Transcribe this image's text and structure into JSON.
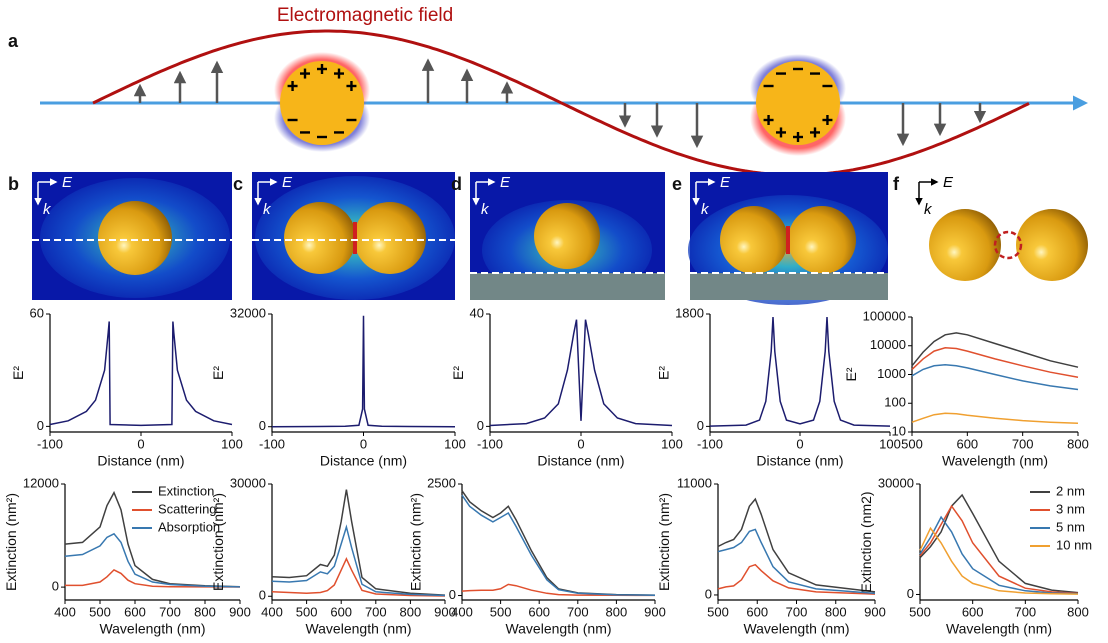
{
  "panel_a": {
    "label": "a",
    "title": "Electromagnetic field"
  },
  "field_panels": [
    {
      "label": "b",
      "e": "E",
      "k": "k"
    },
    {
      "label": "c",
      "e": "E",
      "k": "k"
    },
    {
      "label": "d",
      "e": "E",
      "k": "k"
    },
    {
      "label": "e",
      "e": "E",
      "k": "k"
    },
    {
      "label": "f",
      "e": "E",
      "k": "k"
    }
  ],
  "chart_data": [
    {
      "type": "line",
      "xlabel": "Distance (nm)",
      "ylabel": "E²",
      "xlim": [
        -100,
        100
      ],
      "ylim": [
        -3,
        60
      ],
      "xticks": [
        -100,
        0,
        100
      ],
      "yticks": [
        0,
        60
      ],
      "x": [
        -100,
        -80,
        -60,
        -50,
        -40,
        -36,
        -35,
        -34,
        0,
        34,
        35,
        36,
        40,
        50,
        60,
        80,
        100
      ],
      "series": [
        {
          "color": "#1c1c6e",
          "values": [
            1,
            3,
            8,
            14,
            30,
            50,
            56,
            1,
            0.5,
            1,
            56,
            50,
            30,
            14,
            8,
            3,
            1
          ]
        }
      ]
    },
    {
      "type": "line",
      "xlabel": "Distance (nm)",
      "ylabel": "E²",
      "xlim": [
        -100,
        100
      ],
      "ylim": [
        -1500,
        32000
      ],
      "xticks": [
        -100,
        0,
        100
      ],
      "yticks": [
        0,
        32000
      ],
      "x": [
        -100,
        -50,
        -20,
        -5,
        -1,
        0,
        1,
        5,
        20,
        50,
        100
      ],
      "series": [
        {
          "color": "#1c1c6e",
          "values": [
            0,
            50,
            150,
            400,
            5000,
            31500,
            5000,
            400,
            150,
            50,
            0
          ]
        }
      ]
    },
    {
      "type": "line",
      "xlabel": "Distance (nm)",
      "ylabel": "E²",
      "xlim": [
        -100,
        100
      ],
      "ylim": [
        -2,
        40
      ],
      "xticks": [
        -100,
        0,
        100
      ],
      "yticks": [
        0,
        40
      ],
      "x": [
        -100,
        -60,
        -40,
        -25,
        -15,
        -8,
        -5,
        0,
        5,
        8,
        15,
        25,
        40,
        60,
        100
      ],
      "series": [
        {
          "color": "#1c1c6e",
          "values": [
            0.3,
            1,
            3,
            8,
            20,
            33,
            38,
            2,
            38,
            33,
            20,
            8,
            3,
            1,
            0.3
          ]
        }
      ]
    },
    {
      "type": "line",
      "xlabel": "Distance (nm)",
      "ylabel": "E²",
      "xlim": [
        -100,
        100
      ],
      "ylim": [
        -90,
        1800
      ],
      "xticks": [
        -100,
        0,
        100
      ],
      "yticks": [
        0,
        1800
      ],
      "x": [
        -100,
        -60,
        -45,
        -38,
        -32,
        -30,
        -28,
        -22,
        -15,
        0,
        15,
        22,
        28,
        30,
        32,
        38,
        45,
        60,
        100
      ],
      "series": [
        {
          "color": "#1c1c6e",
          "values": [
            5,
            20,
            100,
            400,
            1200,
            1750,
            1200,
            400,
            100,
            40,
            100,
            400,
            1200,
            1750,
            1200,
            400,
            100,
            20,
            5
          ]
        }
      ]
    },
    {
      "type": "line",
      "xlabel": "Wavelength (nm)",
      "ylabel": "E²",
      "yscale": "log",
      "xlim": [
        500,
        800
      ],
      "ylim": [
        10,
        100000
      ],
      "xticks": [
        500,
        600,
        700,
        800
      ],
      "yticks": [
        10,
        100,
        1000,
        10000,
        100000
      ],
      "x": [
        500,
        520,
        540,
        560,
        580,
        600,
        650,
        700,
        750,
        800
      ],
      "series": [
        {
          "color": "#404040",
          "values": [
            2000,
            6000,
            14000,
            24000,
            28000,
            24000,
            12000,
            6000,
            3000,
            1800
          ]
        },
        {
          "color": "#e0502e",
          "values": [
            1500,
            3500,
            6500,
            8500,
            8000,
            6500,
            3500,
            2000,
            1200,
            800
          ]
        },
        {
          "color": "#3878b0",
          "values": [
            900,
            1500,
            2000,
            2200,
            2000,
            1700,
            1000,
            600,
            400,
            300
          ]
        },
        {
          "color": "#f0a030",
          "values": [
            22,
            30,
            40,
            45,
            43,
            38,
            30,
            25,
            22,
            20
          ]
        }
      ]
    },
    {
      "type": "line",
      "xlabel": "Wavelength (nm)",
      "ylabel": "Extinction (nm²)",
      "xlim": [
        400,
        900
      ],
      "ylim": [
        -1500,
        12000
      ],
      "xticks": [
        400,
        500,
        600,
        700,
        800,
        900
      ],
      "yticks": [
        0,
        12000
      ],
      "legend": "upper right",
      "x": [
        400,
        450,
        500,
        520,
        540,
        560,
        580,
        600,
        650,
        700,
        800,
        900
      ],
      "series": [
        {
          "name": "Extinction",
          "color": "#404040",
          "values": [
            5000,
            5200,
            7000,
            9500,
            11000,
            9000,
            5000,
            2500,
            900,
            400,
            150,
            50
          ]
        },
        {
          "name": "Scattering",
          "color": "#e0502e",
          "values": [
            200,
            200,
            600,
            1200,
            2000,
            1600,
            800,
            400,
            100,
            50,
            20,
            10
          ]
        },
        {
          "name": "Absorption",
          "color": "#3878b0",
          "values": [
            3600,
            3800,
            4800,
            5800,
            6200,
            5200,
            3000,
            1500,
            600,
            300,
            100,
            30
          ]
        }
      ]
    },
    {
      "type": "line",
      "xlabel": "Wavelength (nm)",
      "ylabel": "Extinction (nm²)",
      "xlim": [
        400,
        900
      ],
      "ylim": [
        -1000,
        30000
      ],
      "xticks": [
        400,
        500,
        600,
        700,
        800,
        900
      ],
      "yticks": [
        0,
        30000
      ],
      "x": [
        400,
        450,
        500,
        540,
        560,
        580,
        600,
        615,
        630,
        660,
        700,
        800,
        900
      ],
      "series": [
        {
          "color": "#404040",
          "values": [
            5200,
            5000,
            5500,
            8500,
            8000,
            11000,
            20000,
            28500,
            20000,
            5000,
            2000,
            800,
            300
          ]
        },
        {
          "color": "#e0502e",
          "values": [
            1200,
            1000,
            800,
            1000,
            1500,
            3000,
            7000,
            10000,
            7000,
            1600,
            600,
            200,
            80
          ]
        },
        {
          "color": "#3878b0",
          "values": [
            4000,
            3800,
            4200,
            6500,
            6000,
            8000,
            14000,
            18500,
            13000,
            3200,
            1200,
            500,
            200
          ]
        }
      ]
    },
    {
      "type": "line",
      "xlabel": "Wavelength (nm)",
      "ylabel": "Extinction (nm²)",
      "xlim": [
        400,
        900
      ],
      "ylim": [
        -100,
        2500
      ],
      "xticks": [
        400,
        500,
        600,
        700,
        800,
        900
      ],
      "yticks": [
        0,
        2500
      ],
      "x": [
        400,
        420,
        450,
        480,
        500,
        520,
        540,
        580,
        620,
        650,
        700,
        800,
        900
      ],
      "series": [
        {
          "color": "#404040",
          "values": [
            2350,
            2100,
            1900,
            1750,
            1850,
            2000,
            1700,
            1000,
            400,
            150,
            60,
            20,
            10
          ]
        },
        {
          "color": "#e0502e",
          "values": [
            100,
            110,
            120,
            120,
            150,
            250,
            220,
            120,
            50,
            20,
            10,
            5,
            2
          ]
        },
        {
          "color": "#3878b0",
          "values": [
            2250,
            2000,
            1800,
            1650,
            1750,
            1850,
            1550,
            900,
            350,
            130,
            50,
            15,
            8
          ]
        }
      ]
    },
    {
      "type": "line",
      "xlabel": "Wavelength (nm)",
      "ylabel": "Extinction (nm²)",
      "xlim": [
        500,
        900
      ],
      "ylim": [
        -500,
        11000
      ],
      "xticks": [
        500,
        600,
        700,
        800,
        900
      ],
      "yticks": [
        0,
        11000
      ],
      "x": [
        500,
        520,
        540,
        560,
        580,
        595,
        610,
        640,
        680,
        750,
        900
      ],
      "series": [
        {
          "color": "#404040",
          "values": [
            4800,
            5200,
            5500,
            6500,
            8800,
            9500,
            8000,
            4500,
            2200,
            1000,
            300
          ]
        },
        {
          "color": "#e0502e",
          "values": [
            600,
            800,
            900,
            1500,
            2800,
            3000,
            2400,
            1400,
            700,
            300,
            80
          ]
        },
        {
          "color": "#3878b0",
          "values": [
            4300,
            4500,
            4700,
            5200,
            6300,
            6500,
            5200,
            2800,
            1300,
            600,
            150
          ]
        }
      ]
    },
    {
      "type": "line",
      "xlabel": "Wavelength (nm)",
      "ylabel": "Extinction (nm2)",
      "xlim": [
        500,
        800
      ],
      "ylim": [
        -1500,
        30000
      ],
      "xticks": [
        500,
        600,
        700,
        800
      ],
      "yticks": [
        0,
        30000
      ],
      "legend": "upper right",
      "x": [
        500,
        520,
        540,
        560,
        580,
        600,
        650,
        700,
        750,
        800
      ],
      "series": [
        {
          "name": "2 nm",
          "color": "#404040",
          "values": [
            10000,
            13000,
            17000,
            24000,
            27000,
            22000,
            9000,
            3000,
            1200,
            500
          ]
        },
        {
          "name": "3 nm",
          "color": "#e0502e",
          "values": [
            10500,
            14000,
            19000,
            24000,
            20000,
            14000,
            5000,
            1700,
            700,
            300
          ]
        },
        {
          "name": "5 nm",
          "color": "#3878b0",
          "values": [
            11000,
            15500,
            21000,
            17000,
            11000,
            7000,
            2500,
            1000,
            400,
            200
          ]
        },
        {
          "name": "10 nm",
          "color": "#f0a030",
          "values": [
            12000,
            18000,
            14000,
            9000,
            5000,
            3000,
            1000,
            400,
            200,
            100
          ]
        }
      ]
    }
  ]
}
